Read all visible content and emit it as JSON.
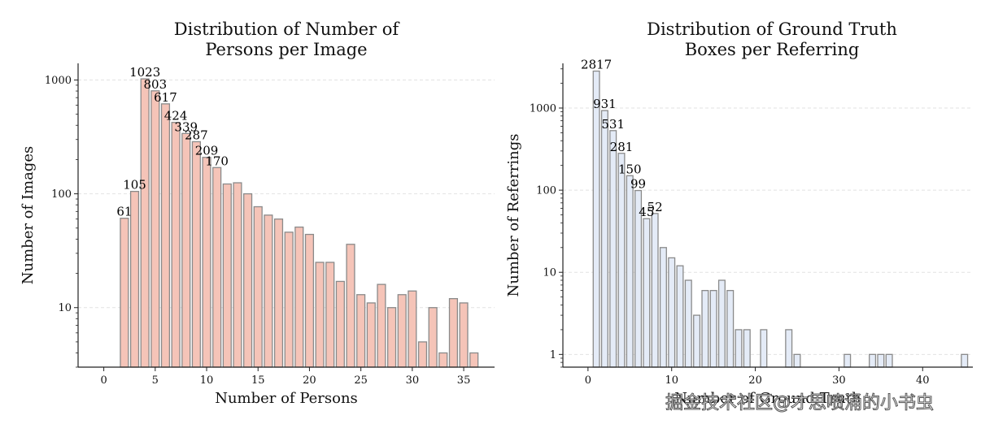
{
  "chart_data": [
    {
      "type": "bar",
      "title": "Distribution of Number of\nPersons per Image",
      "title_lines": [
        "Distribution of Number of",
        "Persons per Image"
      ],
      "xlabel": "Number of Persons",
      "ylabel": "Number of Images",
      "yscale": "log",
      "xlim": [
        -2.5,
        38
      ],
      "ylim": [
        3,
        1400
      ],
      "xticks": [
        0,
        5,
        10,
        15,
        20,
        25,
        30,
        35
      ],
      "yticks": [
        10,
        100,
        1000
      ],
      "ytick_labels": [
        "10",
        "100",
        "1000"
      ],
      "grid": "y-dashed",
      "bar_color": "#f5c4b8",
      "edge_color": "#8a8a8a",
      "x": [
        2,
        3,
        4,
        5,
        6,
        7,
        8,
        9,
        10,
        11,
        12,
        13,
        14,
        15,
        16,
        17,
        18,
        19,
        20,
        21,
        22,
        23,
        24,
        25,
        26,
        27,
        28,
        29,
        30,
        31,
        32,
        33,
        34,
        35,
        36
      ],
      "values": [
        61,
        105,
        1023,
        803,
        617,
        424,
        339,
        287,
        209,
        170,
        122,
        125,
        100,
        77,
        65,
        60,
        46,
        51,
        44,
        25,
        25,
        17,
        36,
        13,
        11,
        16,
        10,
        13,
        14,
        5,
        10,
        4,
        12,
        11,
        4
      ],
      "labeled_count": 10
    },
    {
      "type": "bar",
      "title": "Distribution of Ground Truth\nBoxes per Referring",
      "title_lines": [
        "Distribution of Ground Truth",
        "Boxes per Referring"
      ],
      "xlabel": "Number of Ground Truth",
      "ylabel": "Number of Referrings",
      "yscale": "log",
      "xlim": [
        -3,
        46
      ],
      "ylim": [
        0.7,
        3500
      ],
      "xticks": [
        0,
        10,
        20,
        30,
        40
      ],
      "yticks": [
        1,
        10,
        100,
        1000
      ],
      "ytick_labels": [
        "1",
        "10",
        "100",
        "1000"
      ],
      "grid": "y-dashed",
      "bar_color": "#e4ebf7",
      "edge_color": "#8a8a8a",
      "x": [
        1,
        2,
        3,
        4,
        5,
        6,
        7,
        8,
        9,
        10,
        11,
        12,
        13,
        14,
        15,
        16,
        17,
        18,
        19,
        21,
        24,
        25,
        31,
        34,
        35,
        36,
        45
      ],
      "values": [
        2817,
        931,
        531,
        281,
        150,
        99,
        45,
        52,
        20,
        15,
        12,
        8,
        3,
        6,
        6,
        8,
        6,
        2,
        2,
        2,
        2,
        1,
        1,
        1,
        1,
        1,
        1
      ],
      "labeled_count": 8
    }
  ],
  "watermark": "掘金技术社区@才思喷涌的小书虫"
}
